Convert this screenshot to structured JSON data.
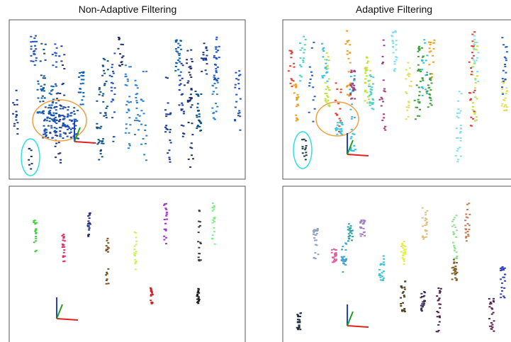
{
  "header": {
    "left_title": "Non-Adaptive Filtering",
    "right_title": "Adaptive Filtering"
  }
}
